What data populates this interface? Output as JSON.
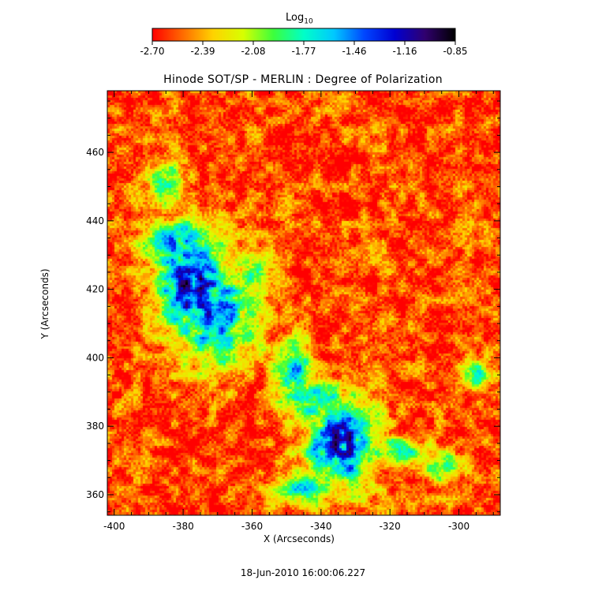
{
  "chart_data": {
    "type": "heatmap",
    "title": "Hinode SOT/SP - MERLIN : Degree of Polarization",
    "xlabel": "X (Arcseconds)",
    "ylabel": "Y (Arcseconds)",
    "xlim": [
      -402,
      -288
    ],
    "ylim": [
      354,
      478
    ],
    "x_ticks": [
      -400,
      -380,
      -360,
      -340,
      -320,
      -300
    ],
    "y_ticks": [
      360,
      380,
      400,
      420,
      440,
      460
    ],
    "colorbar": {
      "label_base": "Log",
      "label_sub": "10",
      "ticks": [
        "-2.70",
        "-2.39",
        "-2.08",
        "-1.77",
        "-1.46",
        "-1.16",
        "-0.85"
      ],
      "range": [
        -2.7,
        -0.85
      ],
      "colormap": [
        "#ff0000",
        "#ff6a00",
        "#ffd200",
        "#d7ff00",
        "#3cff3c",
        "#00ffc8",
        "#00c8ff",
        "#0046ff",
        "#0000d2",
        "#30006e",
        "#000000"
      ]
    },
    "background_level": -2.62,
    "regions": [
      {
        "cx": -377,
        "cy": 420,
        "sx": 7,
        "sy": 9,
        "peak": -0.95
      },
      {
        "cx": -371,
        "cy": 412,
        "sx": 9,
        "sy": 10,
        "peak": -1.35
      },
      {
        "cx": -380,
        "cy": 432,
        "sx": 8,
        "sy": 6,
        "peak": -1.45
      },
      {
        "cx": -385,
        "cy": 450,
        "sx": 4,
        "sy": 5,
        "peak": -1.75
      },
      {
        "cx": -348,
        "cy": 395,
        "sx": 4,
        "sy": 8,
        "peak": -1.55
      },
      {
        "cx": -334,
        "cy": 375,
        "sx": 7,
        "sy": 9,
        "peak": -1.05
      },
      {
        "cx": -342,
        "cy": 388,
        "sx": 6,
        "sy": 4,
        "peak": -1.5
      },
      {
        "cx": -318,
        "cy": 372,
        "sx": 7,
        "sy": 3,
        "peak": -1.65
      },
      {
        "cx": -345,
        "cy": 362,
        "sx": 6,
        "sy": 4,
        "peak": -1.7
      },
      {
        "cx": -305,
        "cy": 368,
        "sx": 4,
        "sy": 3,
        "peak": -1.7
      },
      {
        "cx": -295,
        "cy": 395,
        "sx": 3,
        "sy": 3,
        "peak": -1.8
      },
      {
        "cx": -362,
        "cy": 425,
        "sx": 5,
        "sy": 4,
        "peak": -1.85
      }
    ]
  },
  "footer": {
    "timestamp": "18-Jun-2010 16:00:06.227"
  }
}
